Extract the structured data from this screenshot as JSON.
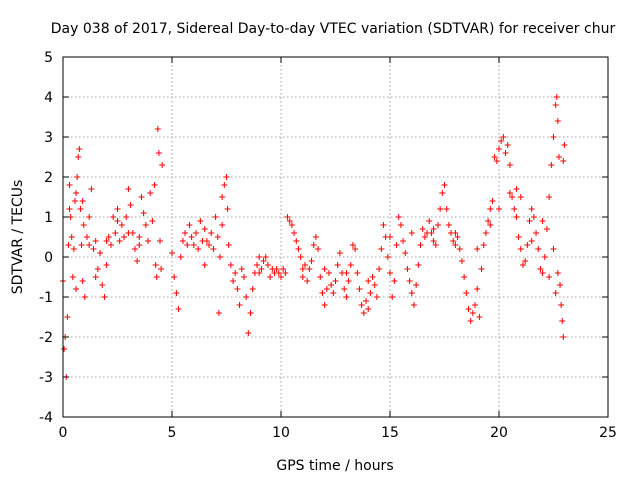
{
  "chart_data": {
    "type": "scatter",
    "title": "Day 038 of 2017, Sidereal Day-to-day VTEC variation (SDTVAR) for receiver chur",
    "xlabel": "GPS time / hours",
    "ylabel": "SDTVAR / TECUs",
    "xlim": [
      0,
      25
    ],
    "ylim": [
      -4,
      5
    ],
    "xticks": [
      0,
      5,
      10,
      15,
      20,
      25
    ],
    "yticks": [
      -4,
      -3,
      -2,
      -1,
      0,
      1,
      2,
      3,
      4,
      5
    ],
    "grid": true,
    "marker": "+",
    "marker_color": "#ff0000",
    "series": [
      {
        "name": "SDTVAR",
        "points": [
          [
            0.0,
            -0.6
          ],
          [
            0.05,
            -2.3
          ],
          [
            0.1,
            -2.0
          ],
          [
            0.15,
            -3.0
          ],
          [
            0.2,
            -1.5
          ],
          [
            0.25,
            0.3
          ],
          [
            0.3,
            1.8
          ],
          [
            0.35,
            1.0
          ],
          [
            0.4,
            0.5
          ],
          [
            0.45,
            -0.5
          ],
          [
            0.5,
            0.2
          ],
          [
            0.55,
            1.4
          ],
          [
            0.6,
            1.6
          ],
          [
            0.65,
            2.0
          ],
          [
            0.7,
            2.5
          ],
          [
            0.75,
            2.7
          ],
          [
            0.8,
            1.2
          ],
          [
            0.85,
            0.3
          ],
          [
            0.9,
            -0.6
          ],
          [
            0.95,
            0.8
          ],
          [
            1.0,
            -1.0
          ],
          [
            1.1,
            0.5
          ],
          [
            1.2,
            0.3
          ],
          [
            1.3,
            1.7
          ],
          [
            1.4,
            0.2
          ],
          [
            1.5,
            0.4
          ],
          [
            1.6,
            -0.3
          ],
          [
            1.7,
            0.1
          ],
          [
            1.8,
            -0.7
          ],
          [
            1.9,
            -1.0
          ],
          [
            2.0,
            -0.2
          ],
          [
            2.1,
            0.5
          ],
          [
            2.2,
            0.3
          ],
          [
            2.3,
            1.0
          ],
          [
            2.4,
            0.6
          ],
          [
            2.5,
            1.2
          ],
          [
            2.6,
            0.4
          ],
          [
            2.7,
            0.8
          ],
          [
            2.8,
            0.5
          ],
          [
            2.9,
            1.0
          ],
          [
            3.0,
            1.7
          ],
          [
            3.1,
            1.3
          ],
          [
            3.2,
            0.6
          ],
          [
            3.3,
            0.2
          ],
          [
            3.4,
            -0.1
          ],
          [
            3.5,
            0.3
          ],
          [
            3.6,
            1.5
          ],
          [
            3.7,
            1.1
          ],
          [
            3.8,
            0.8
          ],
          [
            3.9,
            0.4
          ],
          [
            4.0,
            1.6
          ],
          [
            4.1,
            0.9
          ],
          [
            4.2,
            1.8
          ],
          [
            4.25,
            -0.2
          ],
          [
            4.3,
            -0.5
          ],
          [
            4.35,
            3.2
          ],
          [
            4.4,
            2.6
          ],
          [
            4.45,
            0.4
          ],
          [
            4.5,
            -0.3
          ],
          [
            4.55,
            2.3
          ],
          [
            5.0,
            0.1
          ],
          [
            5.1,
            -0.5
          ],
          [
            5.2,
            -0.9
          ],
          [
            5.3,
            -1.3
          ],
          [
            5.4,
            0.0
          ],
          [
            5.5,
            0.4
          ],
          [
            5.6,
            0.6
          ],
          [
            5.7,
            0.3
          ],
          [
            5.8,
            0.8
          ],
          [
            5.9,
            0.5
          ],
          [
            6.0,
            0.3
          ],
          [
            6.1,
            0.6
          ],
          [
            6.2,
            0.2
          ],
          [
            6.3,
            0.9
          ],
          [
            6.4,
            0.4
          ],
          [
            6.5,
            -0.2
          ],
          [
            6.6,
            0.4
          ],
          [
            6.7,
            0.3
          ],
          [
            6.8,
            0.6
          ],
          [
            6.9,
            0.2
          ],
          [
            7.0,
            1.0
          ],
          [
            7.1,
            0.5
          ],
          [
            7.15,
            -1.4
          ],
          [
            7.2,
            0.0
          ],
          [
            7.3,
            0.8
          ],
          [
            7.4,
            1.8
          ],
          [
            7.5,
            2.0
          ],
          [
            7.55,
            1.2
          ],
          [
            7.6,
            0.3
          ],
          [
            7.7,
            -0.2
          ],
          [
            7.8,
            -0.6
          ],
          [
            7.9,
            -0.4
          ],
          [
            8.0,
            -0.8
          ],
          [
            8.1,
            -1.2
          ],
          [
            8.2,
            -0.3
          ],
          [
            8.3,
            -0.5
          ],
          [
            8.4,
            -1.0
          ],
          [
            8.5,
            -1.9
          ],
          [
            8.6,
            -1.4
          ],
          [
            8.7,
            -0.8
          ],
          [
            8.8,
            -0.4
          ],
          [
            8.9,
            -0.2
          ],
          [
            9.0,
            0.0
          ],
          [
            9.1,
            -0.3
          ],
          [
            9.2,
            -0.1
          ],
          [
            9.3,
            0.0
          ],
          [
            9.4,
            -0.2
          ],
          [
            9.5,
            -0.5
          ],
          [
            9.6,
            -0.3
          ],
          [
            9.7,
            -0.4
          ],
          [
            9.8,
            -0.3
          ],
          [
            9.9,
            -0.4
          ],
          [
            10.0,
            -0.5
          ],
          [
            10.1,
            -0.3
          ],
          [
            10.2,
            -0.4
          ],
          [
            10.3,
            1.0
          ],
          [
            10.4,
            0.9
          ],
          [
            10.5,
            0.8
          ],
          [
            10.6,
            0.6
          ],
          [
            10.7,
            0.4
          ],
          [
            10.8,
            0.2
          ],
          [
            10.9,
            0.0
          ],
          [
            11.0,
            -0.3
          ],
          [
            11.1,
            -0.2
          ],
          [
            11.2,
            -0.6
          ],
          [
            11.3,
            -0.3
          ],
          [
            11.4,
            -0.1
          ],
          [
            11.5,
            0.3
          ],
          [
            11.6,
            0.5
          ],
          [
            11.7,
            0.2
          ],
          [
            11.8,
            -0.5
          ],
          [
            11.9,
            -0.9
          ],
          [
            12.0,
            -1.2
          ],
          [
            12.1,
            -0.8
          ],
          [
            12.2,
            -0.4
          ],
          [
            12.3,
            -0.7
          ],
          [
            12.4,
            -0.9
          ],
          [
            12.5,
            -0.6
          ],
          [
            12.6,
            -0.2
          ],
          [
            12.7,
            0.1
          ],
          [
            12.8,
            -0.4
          ],
          [
            12.9,
            -0.8
          ],
          [
            13.0,
            -1.0
          ],
          [
            13.1,
            -0.6
          ],
          [
            13.2,
            -0.2
          ],
          [
            13.3,
            0.3
          ],
          [
            13.4,
            0.2
          ],
          [
            13.5,
            -0.4
          ],
          [
            13.6,
            -0.8
          ],
          [
            13.7,
            -1.2
          ],
          [
            13.8,
            -1.4
          ],
          [
            13.9,
            -1.1
          ],
          [
            14.0,
            -1.3
          ],
          [
            14.1,
            -0.9
          ],
          [
            14.2,
            -0.5
          ],
          [
            14.3,
            -0.7
          ],
          [
            14.4,
            -1.0
          ],
          [
            14.5,
            -0.3
          ],
          [
            14.6,
            0.2
          ],
          [
            14.7,
            0.8
          ],
          [
            14.8,
            0.5
          ],
          [
            14.9,
            0.0
          ],
          [
            15.0,
            -0.4
          ],
          [
            15.1,
            -1.0
          ],
          [
            15.2,
            -0.6
          ],
          [
            15.3,
            0.3
          ],
          [
            15.4,
            1.0
          ],
          [
            15.5,
            0.8
          ],
          [
            15.6,
            0.4
          ],
          [
            15.7,
            0.1
          ],
          [
            15.8,
            -0.3
          ],
          [
            15.9,
            -0.6
          ],
          [
            16.0,
            -0.9
          ],
          [
            16.1,
            -1.2
          ],
          [
            16.2,
            -0.7
          ],
          [
            16.3,
            -0.2
          ],
          [
            16.4,
            0.3
          ],
          [
            16.5,
            0.7
          ],
          [
            16.6,
            0.5
          ],
          [
            16.7,
            0.6
          ],
          [
            16.8,
            0.9
          ],
          [
            16.9,
            0.6
          ],
          [
            17.0,
            0.4
          ],
          [
            17.1,
            0.3
          ],
          [
            17.2,
            0.8
          ],
          [
            17.3,
            1.2
          ],
          [
            17.4,
            1.6
          ],
          [
            17.5,
            1.8
          ],
          [
            17.6,
            1.2
          ],
          [
            17.7,
            0.8
          ],
          [
            17.8,
            0.6
          ],
          [
            17.9,
            0.4
          ],
          [
            18.0,
            0.3
          ],
          [
            18.1,
            0.5
          ],
          [
            18.2,
            0.2
          ],
          [
            18.3,
            -0.1
          ],
          [
            18.4,
            -0.5
          ],
          [
            18.5,
            -0.9
          ],
          [
            18.6,
            -1.3
          ],
          [
            18.7,
            -1.6
          ],
          [
            18.8,
            -1.4
          ],
          [
            18.9,
            -1.2
          ],
          [
            19.0,
            -0.8
          ],
          [
            19.1,
            -1.5
          ],
          [
            19.2,
            -0.3
          ],
          [
            19.3,
            0.3
          ],
          [
            19.4,
            0.6
          ],
          [
            19.5,
            0.9
          ],
          [
            19.6,
            1.2
          ],
          [
            19.7,
            1.4
          ],
          [
            19.8,
            2.5
          ],
          [
            19.9,
            2.4
          ],
          [
            20.0,
            2.7
          ],
          [
            20.1,
            2.9
          ],
          [
            20.2,
            3.0
          ],
          [
            20.3,
            2.6
          ],
          [
            20.4,
            2.8
          ],
          [
            20.5,
            2.3
          ],
          [
            20.6,
            1.5
          ],
          [
            20.7,
            1.2
          ],
          [
            20.8,
            1.0
          ],
          [
            20.9,
            0.5
          ],
          [
            21.0,
            0.2
          ],
          [
            21.1,
            -0.2
          ],
          [
            21.2,
            -0.1
          ],
          [
            21.3,
            0.3
          ],
          [
            21.4,
            0.9
          ],
          [
            21.5,
            1.2
          ],
          [
            21.6,
            1.0
          ],
          [
            21.7,
            0.6
          ],
          [
            21.8,
            0.2
          ],
          [
            21.9,
            -0.3
          ],
          [
            22.0,
            -0.4
          ],
          [
            22.1,
            0.0
          ],
          [
            22.2,
            0.7
          ],
          [
            22.3,
            1.5
          ],
          [
            22.4,
            2.3
          ],
          [
            22.5,
            3.0
          ],
          [
            22.6,
            3.8
          ],
          [
            22.65,
            4.0
          ],
          [
            22.7,
            3.4
          ],
          [
            22.75,
            2.5
          ],
          [
            22.8,
            -0.7
          ],
          [
            22.85,
            -1.2
          ],
          [
            22.9,
            -1.6
          ],
          [
            22.95,
            -2.0
          ],
          [
            23.0,
            2.8
          ],
          [
            22.95,
            2.4
          ],
          [
            22.7,
            -0.4
          ],
          [
            22.5,
            0.2
          ],
          [
            0.3,
            1.2
          ],
          [
            0.6,
            -0.8
          ],
          [
            0.9,
            1.4
          ],
          [
            1.2,
            1.0
          ],
          [
            1.5,
            -0.5
          ],
          [
            2.0,
            0.4
          ],
          [
            2.5,
            0.9
          ],
          [
            3.0,
            0.6
          ],
          [
            3.5,
            0.5
          ],
          [
            6.5,
            0.7
          ],
          [
            7.3,
            1.5
          ],
          [
            9.0,
            -0.4
          ],
          [
            11.0,
            -0.5
          ],
          [
            12.0,
            -0.3
          ],
          [
            13.0,
            -0.4
          ],
          [
            14.0,
            -0.6
          ],
          [
            15.0,
            0.5
          ],
          [
            16.0,
            0.6
          ],
          [
            17.0,
            0.7
          ],
          [
            18.0,
            0.6
          ],
          [
            19.0,
            0.2
          ],
          [
            20.0,
            1.2
          ],
          [
            20.5,
            1.6
          ],
          [
            21.0,
            1.5
          ],
          [
            21.5,
            0.4
          ],
          [
            22.0,
            0.9
          ],
          [
            22.3,
            -0.5
          ],
          [
            22.6,
            -0.9
          ],
          [
            19.6,
            0.8
          ],
          [
            20.8,
            1.7
          ]
        ]
      }
    ]
  }
}
